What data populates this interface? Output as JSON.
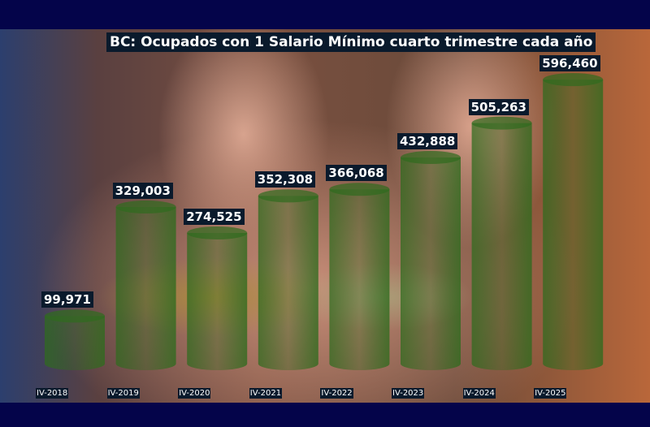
{
  "chart_data": {
    "type": "bar",
    "title": "BC: Ocupados con 1 Salario Mínimo cuarto trimestre cada año",
    "categories": [
      "IV-2018",
      "IV-2019",
      "IV-2020",
      "IV-2021",
      "IV-2022",
      "IV-2023",
      "IV-2024",
      "IV-2025"
    ],
    "values": [
      99971,
      329003,
      274525,
      352308,
      366068,
      432888,
      505263,
      596460
    ],
    "value_labels": [
      "99,971",
      "329,003",
      "274,525",
      "352,308",
      "366,068",
      "432,888",
      "505,263",
      "596,460"
    ],
    "ylim": [
      0,
      600000
    ],
    "grid": false,
    "bar_style": "cylinder",
    "bar_color": "#2f6b1e",
    "frame_color": "#04044a"
  }
}
